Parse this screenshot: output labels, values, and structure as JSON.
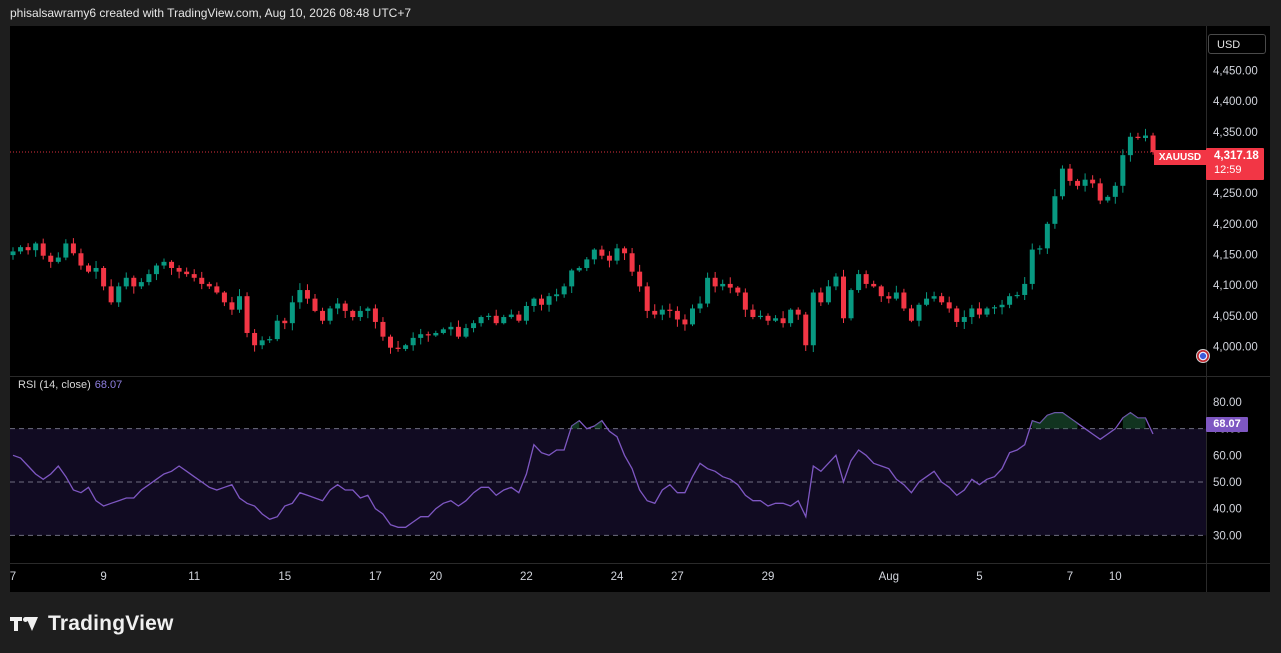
{
  "header": {
    "attribution": "phisalsawramy6 created with TradingView.com, Aug 10, 2026 08:48 UTC+7"
  },
  "toolbar": {
    "currency_label": "USD"
  },
  "price_tag": {
    "symbol": "XAUUSD",
    "value": "4,317.18",
    "countdown": "12:59",
    "color": "#f23645"
  },
  "rsi_tag": {
    "value": "68.07",
    "color": "#7e57c2"
  },
  "rsi_legend": {
    "label": "RSI (14, close)",
    "value": "68.07"
  },
  "footer": {
    "brand": "TradingView"
  },
  "colors": {
    "up": "#089981",
    "down": "#f23645",
    "rsi_line": "#7e57c2"
  },
  "chart_data": [
    {
      "type": "candlestick",
      "symbol": "XAUUSD",
      "ylim": [
        3960,
        4490
      ],
      "y_ticks": [
        4000,
        4050,
        4100,
        4150,
        4200,
        4250,
        4300,
        4350,
        4400,
        4450
      ],
      "y_tick_labels": [
        "4,000.00",
        "4,050.00",
        "4,100.00",
        "4,150.00",
        "4,200.00",
        "4,250.00",
        "4,300.00",
        "4,350.00",
        "4,400.00",
        "4,450.00"
      ],
      "last_price": 4317.18,
      "x_ticks": [
        {
          "label": "7",
          "index": 0
        },
        {
          "label": "9",
          "index": 12
        },
        {
          "label": "11",
          "index": 24
        },
        {
          "label": "15",
          "index": 36
        },
        {
          "label": "17",
          "index": 48
        },
        {
          "label": "20",
          "index": 56
        },
        {
          "label": "22",
          "index": 68
        },
        {
          "label": "24",
          "index": 80
        },
        {
          "label": "27",
          "index": 88
        },
        {
          "label": "29",
          "index": 100
        },
        {
          "label": "Aug",
          "index": 116
        },
        {
          "label": "5",
          "index": 128
        },
        {
          "label": "7",
          "index": 140
        },
        {
          "label": "10",
          "index": 146
        }
      ],
      "close": [
        4155,
        4162,
        4157,
        4168,
        4148,
        4138,
        4145,
        4168,
        4152,
        4132,
        4122,
        4128,
        4098,
        4072,
        4098,
        4112,
        4098,
        4105,
        4118,
        4132,
        4138,
        4128,
        4122,
        4118,
        4112,
        4102,
        4098,
        4088,
        4072,
        4060,
        4082,
        4022,
        4002,
        4010,
        4012,
        4042,
        4038,
        4072,
        4092,
        4078,
        4058,
        4042,
        4062,
        4070,
        4058,
        4048,
        4058,
        4062,
        4040,
        4016,
        3998,
        3996,
        4002,
        4014,
        4020,
        4018,
        4022,
        4028,
        4032,
        4016,
        4030,
        4038,
        4048,
        4050,
        4038,
        4048,
        4052,
        4042,
        4066,
        4078,
        4068,
        4082,
        4085,
        4098,
        4124,
        4128,
        4142,
        4158,
        4148,
        4140,
        4160,
        4152,
        4122,
        4098,
        4058,
        4052,
        4060,
        4058,
        4044,
        4036,
        4062,
        4070,
        4112,
        4098,
        4102,
        4096,
        4088,
        4060,
        4048,
        4050,
        4042,
        4046,
        4038,
        4060,
        4052,
        4002,
        4088,
        4072,
        4098,
        4114,
        4046,
        4092,
        4118,
        4102,
        4098,
        4082,
        4078,
        4088,
        4062,
        4042,
        4068,
        4078,
        4082,
        4072,
        4062,
        4040,
        4048,
        4062,
        4052,
        4062,
        4064,
        4068,
        4082,
        4084,
        4102,
        4158,
        4160,
        4200,
        4245,
        4290,
        4270,
        4262,
        4272,
        4266,
        4238,
        4244,
        4262,
        4312,
        4342,
        4340,
        4344,
        4317
      ]
    },
    {
      "type": "line",
      "name": "RSI (14, close)",
      "ylim": [
        26,
        86
      ],
      "y_ticks": [
        30,
        40,
        50,
        60,
        70,
        80
      ],
      "y_tick_labels": [
        "30.00",
        "40.00",
        "50.00",
        "60.00",
        "70.00",
        "80.00"
      ],
      "levels": {
        "upper": 70,
        "middle": 50,
        "lower": 30
      },
      "last": 68.07,
      "values": [
        60,
        59,
        56,
        53,
        51,
        53,
        56,
        52,
        47,
        46,
        48,
        43,
        41,
        42,
        43,
        44,
        44,
        47,
        49,
        51,
        53,
        54,
        56,
        54,
        52,
        50,
        48,
        47,
        48,
        49,
        44,
        42,
        41,
        38,
        36,
        37,
        41,
        42,
        46,
        45,
        44,
        43,
        47,
        49,
        47,
        47,
        44,
        45,
        40,
        38,
        34,
        33,
        33,
        35,
        37,
        37,
        40,
        42,
        43,
        41,
        43,
        46,
        48,
        48,
        45,
        47,
        48,
        46,
        53,
        64,
        61,
        60,
        62,
        62,
        71,
        73,
        70,
        71,
        73,
        69,
        67,
        60,
        55,
        47,
        43,
        42,
        47,
        49,
        46,
        46,
        52,
        57,
        55,
        54,
        52,
        51,
        49,
        45,
        43,
        43,
        41,
        42,
        42,
        41,
        43,
        37,
        56,
        54,
        57,
        60,
        50,
        58,
        62,
        60,
        57,
        56,
        55,
        51,
        49,
        46,
        50,
        52,
        54,
        50,
        48,
        45,
        47,
        51,
        49,
        51,
        52,
        55,
        61,
        62,
        64,
        73,
        72,
        75,
        76,
        76,
        74,
        72,
        70,
        68,
        66,
        68,
        70,
        74,
        76,
        74,
        74,
        68
      ]
    }
  ]
}
